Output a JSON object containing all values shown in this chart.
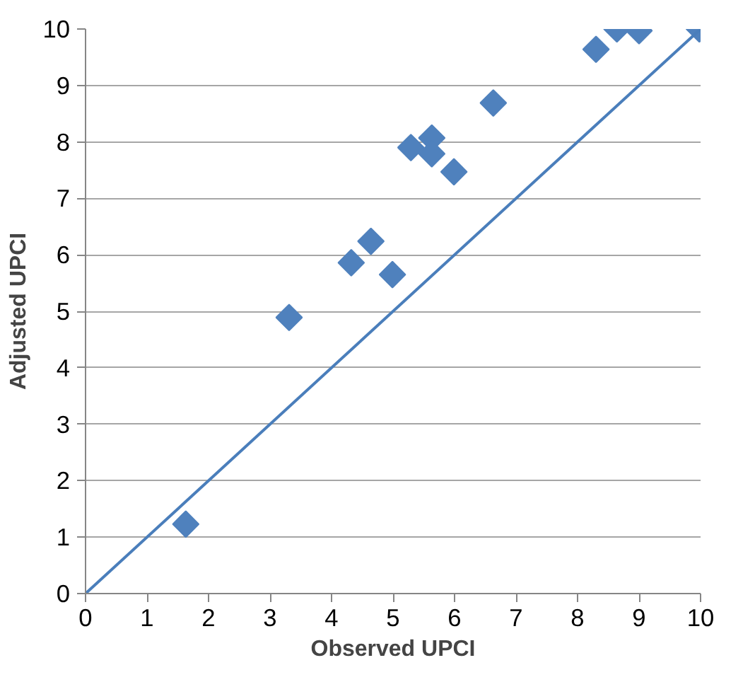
{
  "chart_data": {
    "type": "scatter",
    "xlabel": "Observed UPCI",
    "ylabel": "Adjusted UPCI",
    "xlim": [
      0,
      10
    ],
    "ylim": [
      0,
      10
    ],
    "xticks": [
      0,
      1,
      2,
      3,
      4,
      5,
      6,
      7,
      8,
      9,
      10
    ],
    "yticks": [
      0,
      1,
      2,
      3,
      4,
      5,
      6,
      7,
      8,
      9,
      10
    ],
    "grid": "y",
    "series": [
      {
        "marker": "diamond",
        "color": "#4f81bd",
        "x": [
          1.63,
          3.31,
          4.32,
          4.64,
          4.99,
          5.29,
          5.63,
          5.63,
          5.99,
          6.63,
          8.3,
          8.64,
          9.0,
          9.98
        ],
        "values": [
          1.23,
          4.89,
          5.86,
          6.24,
          5.65,
          7.9,
          8.07,
          7.79,
          7.47,
          8.69,
          9.64,
          10.0,
          9.97,
          10.0
        ]
      },
      {
        "type": "line",
        "marker": "none",
        "color": "#4a7ebb",
        "x": [
          0,
          10
        ],
        "values": [
          0,
          10
        ]
      }
    ]
  }
}
